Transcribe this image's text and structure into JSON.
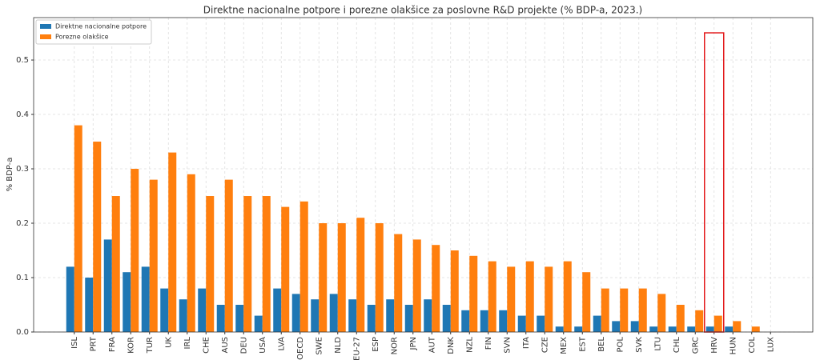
{
  "chart_data": {
    "type": "bar",
    "title": "Direktne nacionalne potpore i porezne olakšice za poslovne R&D projekte (% BDP-a, 2023.)",
    "y_label": "% BDP-a",
    "categories": [
      "ISL",
      "PRT",
      "FRA",
      "KOR",
      "TUR",
      "UK",
      "IRL",
      "CHE",
      "AUS",
      "DEU",
      "USA",
      "LVA",
      "OECD",
      "SWE",
      "NLD",
      "EU-27",
      "ESP",
      "NOR",
      "JPN",
      "AUT",
      "DNK",
      "NZL",
      "FIN",
      "SVN",
      "ITA",
      "CZE",
      "MEX",
      "EST",
      "BEL",
      "POL",
      "SVK",
      "LTU",
      "CHL",
      "GRC",
      "HRV",
      "HUN",
      "COL",
      "LUX"
    ],
    "series": [
      {
        "name": "Direktne nacionalne potpore",
        "color": "#1f77b4",
        "values": [
          0.12,
          0.1,
          0.17,
          0.11,
          0.12,
          0.08,
          0.06,
          0.08,
          0.05,
          0.05,
          0.03,
          0.08,
          0.07,
          0.06,
          0.07,
          0.06,
          0.05,
          0.06,
          0.05,
          0.06,
          0.05,
          0.04,
          0.04,
          0.04,
          0.03,
          0.03,
          0.01,
          0.01,
          0.03,
          0.02,
          0.02,
          0.01,
          0.01,
          0.01,
          0.01,
          0.01,
          0,
          0
        ]
      },
      {
        "name": "Porezne olakšice",
        "color": "#ff7f0e",
        "values": [
          0.38,
          0.35,
          0.25,
          0.3,
          0.28,
          0.33,
          0.29,
          0.25,
          0.28,
          0.25,
          0.25,
          0.23,
          0.24,
          0.2,
          0.2,
          0.21,
          0.2,
          0.18,
          0.17,
          0.16,
          0.15,
          0.14,
          0.13,
          0.12,
          0.13,
          0.12,
          0.13,
          0.11,
          0.08,
          0.08,
          0.08,
          0.07,
          0.05,
          0.04,
          0.03,
          0.02,
          0.01,
          0
        ]
      }
    ],
    "ylim": [
      0,
      0.578
    ],
    "yticks": [
      {
        "value": 0,
        "label": "0.0"
      },
      0.1,
      0.2,
      0.3,
      0.4,
      0.5
    ],
    "grid": true,
    "legend": "upper left",
    "highlight": {
      "category": "HRV",
      "value": 0.55,
      "color": "#e31a1c"
    }
  }
}
